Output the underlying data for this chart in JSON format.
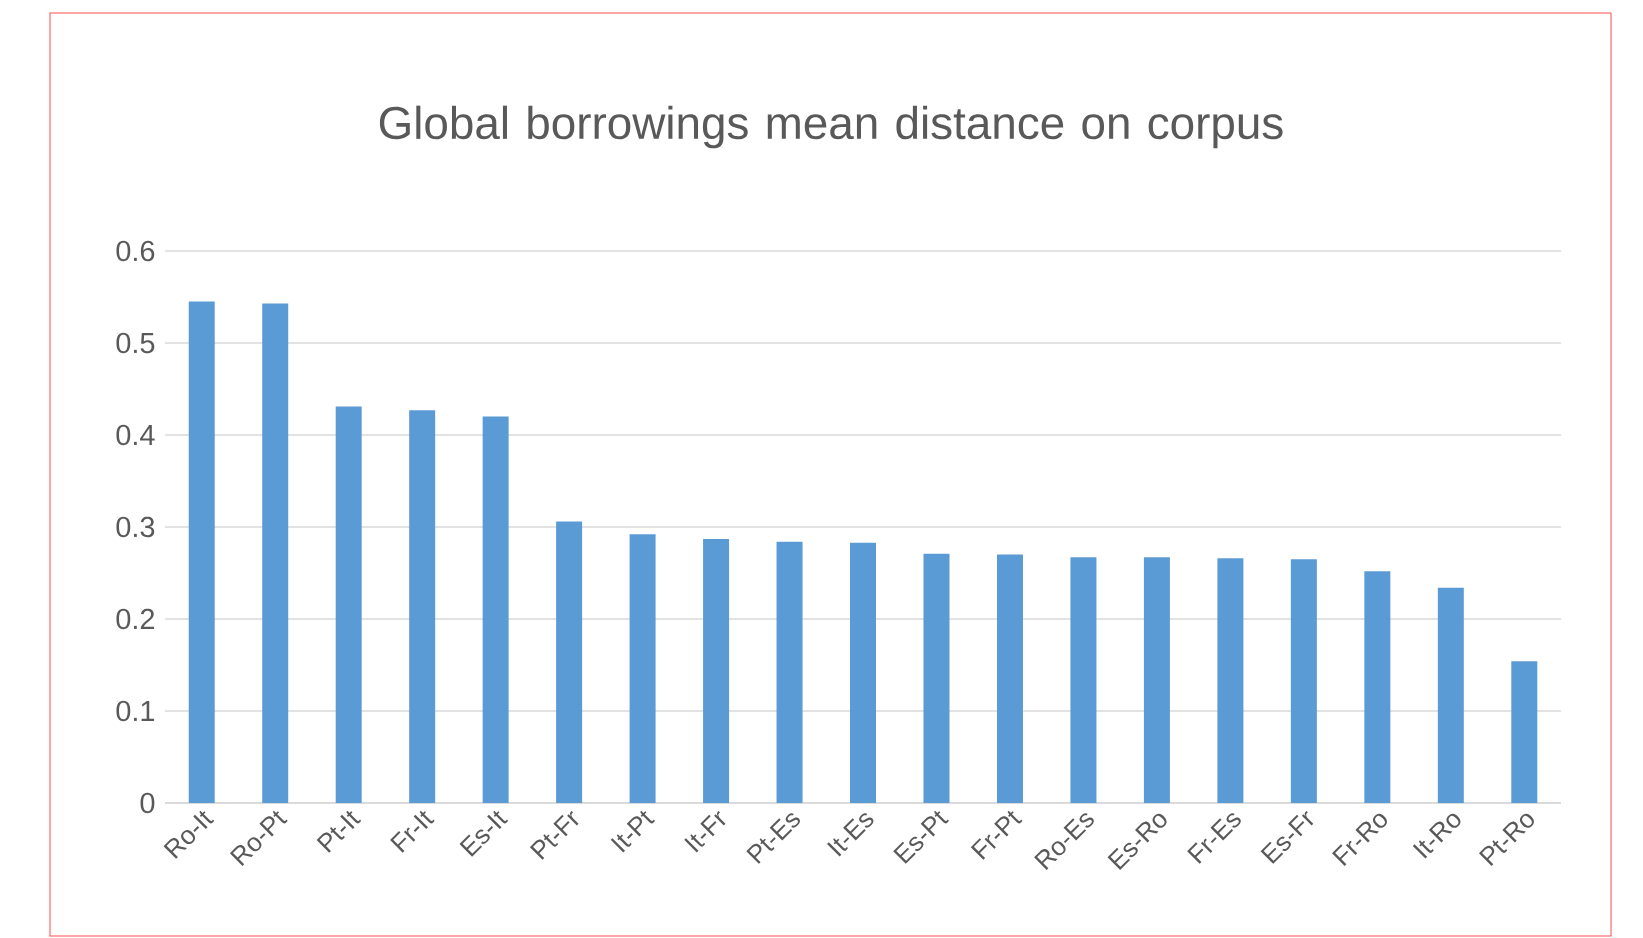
{
  "chart_data": {
    "type": "bar",
    "title": "Global borrowings mean distance on corpus",
    "categories": [
      "Ro-It",
      "Ro-Pt",
      "Pt-It",
      "Fr-It",
      "Es-It",
      "Pt-Fr",
      "It-Pt",
      "It-Fr",
      "Pt-Es",
      "It-Es",
      "Es-Pt",
      "Fr-Pt",
      "Ro-Es",
      "Es-Ro",
      "Fr-Es",
      "Es-Fr",
      "Fr-Ro",
      "It-Ro",
      "Pt-Ro"
    ],
    "values": [
      0.545,
      0.543,
      0.431,
      0.427,
      0.42,
      0.306,
      0.292,
      0.287,
      0.284,
      0.283,
      0.271,
      0.27,
      0.267,
      0.267,
      0.266,
      0.265,
      0.252,
      0.234,
      0.154
    ],
    "color": "#5b9bd5",
    "ylim": [
      0,
      0.6
    ],
    "yticks": [
      0,
      0.1,
      0.2,
      0.3,
      0.4,
      0.5,
      0.6
    ],
    "grid": "y"
  }
}
